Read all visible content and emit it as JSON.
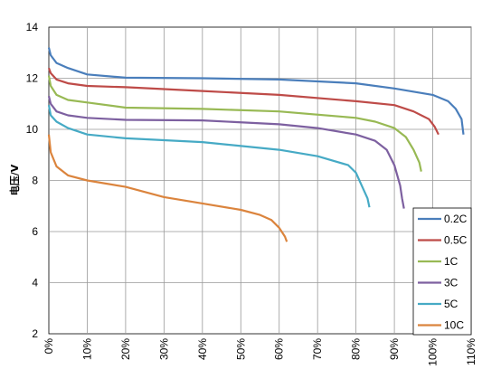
{
  "chart_data": {
    "type": "line",
    "title": "",
    "xlabel": "",
    "ylabel": "电压/V",
    "xlim": [
      0,
      110
    ],
    "ylim": [
      2,
      14
    ],
    "x_ticks": [
      "0%",
      "10%",
      "20%",
      "30%",
      "40%",
      "50%",
      "60%",
      "70%",
      "80%",
      "90%",
      "100%",
      "110%"
    ],
    "y_ticks": [
      "2",
      "4",
      "6",
      "8",
      "10",
      "12",
      "14"
    ],
    "grid": true,
    "legend_position": "bottom-right",
    "series": [
      {
        "name": "0.2C",
        "color": "#4a7ebb",
        "points": [
          [
            0,
            13.2
          ],
          [
            0.5,
            12.9
          ],
          [
            2,
            12.6
          ],
          [
            5,
            12.4
          ],
          [
            10,
            12.15
          ],
          [
            20,
            12.02
          ],
          [
            40,
            12.0
          ],
          [
            60,
            11.95
          ],
          [
            80,
            11.8
          ],
          [
            90,
            11.6
          ],
          [
            100,
            11.35
          ],
          [
            104,
            11.1
          ],
          [
            106,
            10.8
          ],
          [
            107.5,
            10.4
          ],
          [
            108,
            9.8
          ]
        ]
      },
      {
        "name": "0.5C",
        "color": "#be4b48",
        "points": [
          [
            0,
            12.4
          ],
          [
            0.5,
            12.2
          ],
          [
            2,
            11.95
          ],
          [
            5,
            11.8
          ],
          [
            10,
            11.7
          ],
          [
            20,
            11.65
          ],
          [
            40,
            11.5
          ],
          [
            60,
            11.35
          ],
          [
            80,
            11.1
          ],
          [
            90,
            10.95
          ],
          [
            95,
            10.7
          ],
          [
            99,
            10.4
          ],
          [
            100.5,
            10.1
          ],
          [
            101.5,
            9.8
          ]
        ]
      },
      {
        "name": "1C",
        "color": "#98b954",
        "points": [
          [
            0,
            12.1
          ],
          [
            0.5,
            11.7
          ],
          [
            2,
            11.35
          ],
          [
            5,
            11.15
          ],
          [
            10,
            11.05
          ],
          [
            20,
            10.85
          ],
          [
            40,
            10.8
          ],
          [
            60,
            10.7
          ],
          [
            80,
            10.45
          ],
          [
            85,
            10.3
          ],
          [
            90,
            10.05
          ],
          [
            93,
            9.7
          ],
          [
            95,
            9.2
          ],
          [
            96.5,
            8.7
          ],
          [
            97,
            8.35
          ]
        ]
      },
      {
        "name": "3C",
        "color": "#7d60a0",
        "points": [
          [
            0,
            11.3
          ],
          [
            0.5,
            11.0
          ],
          [
            2,
            10.7
          ],
          [
            5,
            10.55
          ],
          [
            10,
            10.45
          ],
          [
            20,
            10.37
          ],
          [
            40,
            10.35
          ],
          [
            60,
            10.2
          ],
          [
            70,
            10.05
          ],
          [
            80,
            9.8
          ],
          [
            85,
            9.55
          ],
          [
            88,
            9.2
          ],
          [
            90,
            8.6
          ],
          [
            91.5,
            7.8
          ],
          [
            92,
            7.3
          ],
          [
            92.5,
            6.9
          ]
        ]
      },
      {
        "name": "5C",
        "color": "#46aac5",
        "points": [
          [
            0,
            10.95
          ],
          [
            0.5,
            10.55
          ],
          [
            2,
            10.3
          ],
          [
            5,
            10.05
          ],
          [
            10,
            9.8
          ],
          [
            20,
            9.65
          ],
          [
            40,
            9.5
          ],
          [
            60,
            9.2
          ],
          [
            70,
            8.95
          ],
          [
            78,
            8.6
          ],
          [
            80,
            8.3
          ],
          [
            81.5,
            7.8
          ],
          [
            83,
            7.3
          ],
          [
            83.5,
            6.95
          ]
        ]
      },
      {
        "name": "10C",
        "color": "#db843d",
        "points": [
          [
            0,
            9.8
          ],
          [
            0.5,
            9.1
          ],
          [
            2,
            8.55
          ],
          [
            5,
            8.2
          ],
          [
            10,
            8.0
          ],
          [
            20,
            7.75
          ],
          [
            30,
            7.35
          ],
          [
            40,
            7.1
          ],
          [
            50,
            6.85
          ],
          [
            55,
            6.65
          ],
          [
            58,
            6.45
          ],
          [
            60,
            6.15
          ],
          [
            61.5,
            5.8
          ],
          [
            62,
            5.6
          ]
        ]
      }
    ]
  }
}
